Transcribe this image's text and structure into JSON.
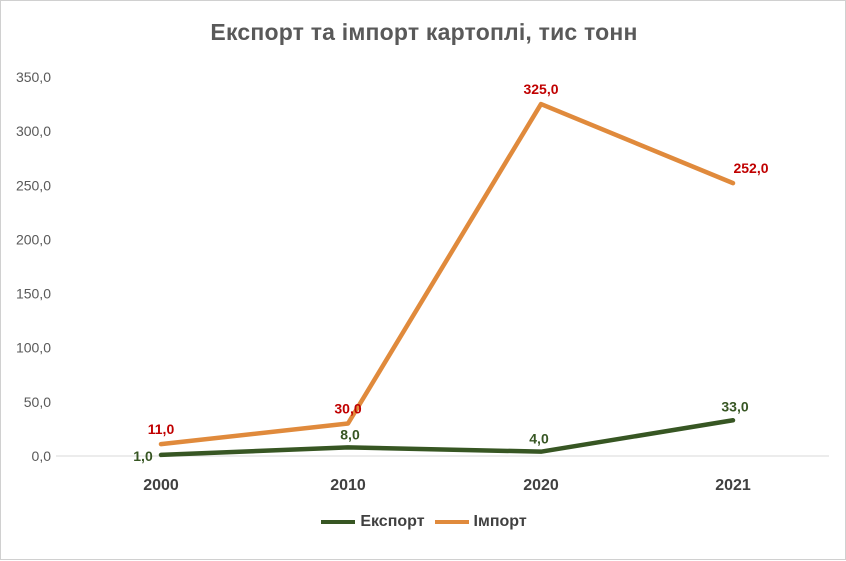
{
  "chart_data": {
    "type": "line",
    "title": "Експорт та імпорт картоплі, тис тонн",
    "categories": [
      "2000",
      "2010",
      "2020",
      "2021"
    ],
    "ylim": [
      0,
      350
    ],
    "yticks": [
      "0,0",
      "50,0",
      "100,0",
      "150,0",
      "200,0",
      "250,0",
      "300,0",
      "350,0"
    ],
    "grid": false,
    "legend": "bottom",
    "series": [
      {
        "name": "Експорт",
        "color": "#375623",
        "values": [
          1,
          8,
          4,
          33
        ],
        "labels": [
          "1,0",
          "8,0",
          "4,0",
          "33,0"
        ]
      },
      {
        "name": "Імпорт",
        "color": "#e08a3c",
        "label_color": "#c00000",
        "values": [
          11,
          30,
          325,
          252
        ],
        "labels": [
          "11,0",
          "30,0",
          "325,0",
          "252,0"
        ]
      }
    ]
  }
}
